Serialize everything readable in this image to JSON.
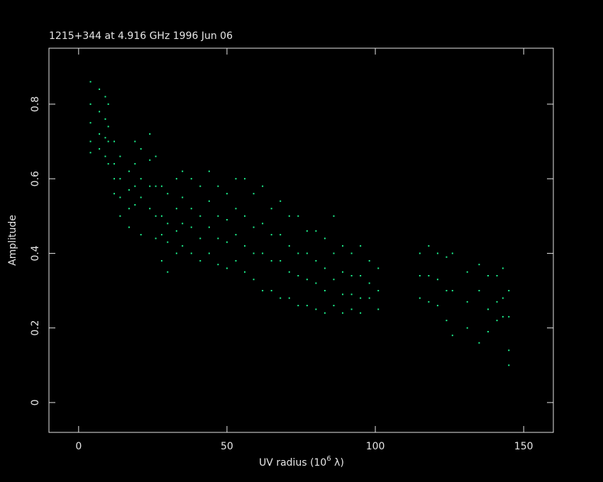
{
  "chart_data": {
    "type": "scatter",
    "title": "1215+344 at 4.916 GHz 1996 Jun 06",
    "x_label": "UV radius  (10",
    "x_label_exponent": "6",
    "x_label_unit": " λ)",
    "y_label": "Amplitude",
    "color": "#1cf08c",
    "xlim": [
      -10,
      160
    ],
    "ylim": [
      -0.08,
      0.95
    ],
    "xticks": [
      0,
      50,
      100,
      150
    ],
    "yticks": [
      0,
      0.2,
      0.4,
      0.6,
      0.8
    ],
    "x": [
      4,
      4,
      4,
      4,
      4,
      7,
      7,
      7,
      7,
      9,
      9,
      9,
      9,
      10,
      10,
      10,
      10,
      12,
      12,
      12,
      12,
      14,
      14,
      14,
      14,
      17,
      17,
      17,
      17,
      19,
      19,
      19,
      19,
      21,
      21,
      21,
      21,
      24,
      24,
      24,
      24,
      26,
      26,
      26,
      26,
      28,
      28,
      28,
      28,
      30,
      30,
      30,
      30,
      33,
      33,
      33,
      33,
      35,
      35,
      35,
      35,
      38,
      38,
      38,
      38,
      41,
      41,
      41,
      41,
      44,
      44,
      44,
      44,
      47,
      47,
      47,
      47,
      50,
      50,
      50,
      50,
      53,
      53,
      53,
      53,
      56,
      56,
      56,
      56,
      59,
      59,
      59,
      59,
      62,
      62,
      62,
      62,
      65,
      65,
      65,
      65,
      68,
      68,
      68,
      68,
      71,
      71,
      71,
      71,
      74,
      74,
      74,
      74,
      77,
      77,
      77,
      77,
      80,
      80,
      80,
      80,
      83,
      83,
      83,
      83,
      86,
      86,
      86,
      86,
      89,
      89,
      89,
      89,
      92,
      92,
      92,
      92,
      95,
      95,
      95,
      95,
      98,
      98,
      98,
      101,
      101,
      101,
      115,
      115,
      115,
      118,
      118,
      118,
      121,
      121,
      121,
      124,
      124,
      124,
      126,
      126,
      126,
      131,
      131,
      131,
      135,
      135,
      135,
      138,
      138,
      138,
      141,
      141,
      141,
      143,
      143,
      143,
      145,
      145,
      145,
      145
    ],
    "values": [
      0.86,
      0.8,
      0.75,
      0.7,
      0.67,
      0.84,
      0.78,
      0.72,
      0.68,
      0.82,
      0.76,
      0.71,
      0.66,
      0.8,
      0.74,
      0.7,
      0.64,
      0.7,
      0.64,
      0.6,
      0.56,
      0.66,
      0.6,
      0.55,
      0.5,
      0.62,
      0.57,
      0.52,
      0.47,
      0.7,
      0.64,
      0.58,
      0.53,
      0.68,
      0.6,
      0.55,
      0.45,
      0.72,
      0.65,
      0.58,
      0.52,
      0.66,
      0.58,
      0.5,
      0.44,
      0.58,
      0.5,
      0.45,
      0.38,
      0.56,
      0.48,
      0.43,
      0.35,
      0.6,
      0.52,
      0.46,
      0.4,
      0.62,
      0.55,
      0.48,
      0.42,
      0.6,
      0.52,
      0.47,
      0.4,
      0.58,
      0.5,
      0.44,
      0.38,
      0.62,
      0.54,
      0.47,
      0.4,
      0.58,
      0.5,
      0.44,
      0.37,
      0.56,
      0.49,
      0.43,
      0.36,
      0.6,
      0.52,
      0.45,
      0.38,
      0.6,
      0.5,
      0.42,
      0.35,
      0.56,
      0.47,
      0.4,
      0.33,
      0.58,
      0.48,
      0.4,
      0.3,
      0.52,
      0.45,
      0.38,
      0.3,
      0.54,
      0.45,
      0.38,
      0.28,
      0.5,
      0.42,
      0.35,
      0.28,
      0.5,
      0.4,
      0.34,
      0.26,
      0.46,
      0.4,
      0.33,
      0.26,
      0.46,
      0.38,
      0.32,
      0.25,
      0.44,
      0.36,
      0.3,
      0.24,
      0.5,
      0.4,
      0.33,
      0.26,
      0.42,
      0.35,
      0.29,
      0.24,
      0.4,
      0.34,
      0.29,
      0.25,
      0.42,
      0.34,
      0.28,
      0.24,
      0.38,
      0.32,
      0.28,
      0.36,
      0.3,
      0.25,
      0.4,
      0.34,
      0.28,
      0.42,
      0.34,
      0.27,
      0.4,
      0.33,
      0.26,
      0.39,
      0.3,
      0.22,
      0.4,
      0.3,
      0.18,
      0.35,
      0.27,
      0.2,
      0.37,
      0.3,
      0.16,
      0.34,
      0.25,
      0.19,
      0.34,
      0.27,
      0.22,
      0.36,
      0.28,
      0.23,
      0.3,
      0.23,
      0.14,
      0.1
    ]
  }
}
